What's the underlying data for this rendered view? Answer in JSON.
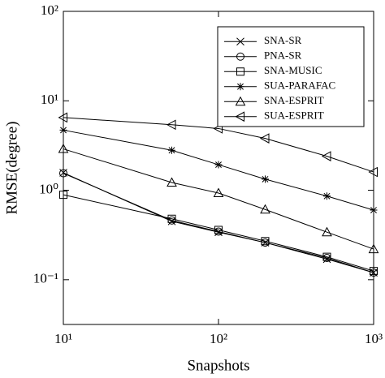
{
  "chart_data": {
    "type": "line",
    "x": [
      10,
      50,
      100,
      200,
      500,
      1000
    ],
    "xlabel": "Snapshots",
    "ylabel": "RMSE(degree)",
    "xscale": "log",
    "yscale": "log",
    "xlim": [
      10,
      1000
    ],
    "ylim": [
      0.0316,
      100
    ],
    "xticks": [
      {
        "value": 10,
        "label": "10¹"
      },
      {
        "value": 100,
        "label": "10²"
      },
      {
        "value": 1000,
        "label": "10³"
      }
    ],
    "yticks": [
      {
        "value": 0.1,
        "label": "10⁻¹"
      },
      {
        "value": 1,
        "label": "10⁰"
      },
      {
        "value": 10,
        "label": "10¹"
      },
      {
        "value": 100,
        "label": "10²"
      }
    ],
    "legend": "upper right",
    "series": [
      {
        "name": "SNA-SR",
        "color": "#000000",
        "marker": "x",
        "values": [
          1.57,
          0.45,
          0.34,
          0.26,
          0.17,
          0.12
        ]
      },
      {
        "name": "PNA-SR",
        "color": "#000000",
        "marker": "o",
        "values": [
          1.55,
          0.46,
          0.345,
          0.26,
          0.175,
          0.12
        ]
      },
      {
        "name": "SNA-MUSIC",
        "color": "#000000",
        "marker": "s",
        "values": [
          0.89,
          0.48,
          0.36,
          0.27,
          0.18,
          0.125
        ]
      },
      {
        "name": "SUA-PARAFAC",
        "color": "#000000",
        "marker": "*",
        "values": [
          4.7,
          2.8,
          1.93,
          1.33,
          0.86,
          0.6
        ]
      },
      {
        "name": "SNA-ESPRIT",
        "color": "#000000",
        "marker": "^",
        "values": [
          2.9,
          1.22,
          0.93,
          0.61,
          0.34,
          0.22
        ]
      },
      {
        "name": "SUA-ESPRIT",
        "color": "#000000",
        "marker": "<",
        "values": [
          6.5,
          5.4,
          4.9,
          3.8,
          2.4,
          1.6
        ]
      }
    ]
  }
}
